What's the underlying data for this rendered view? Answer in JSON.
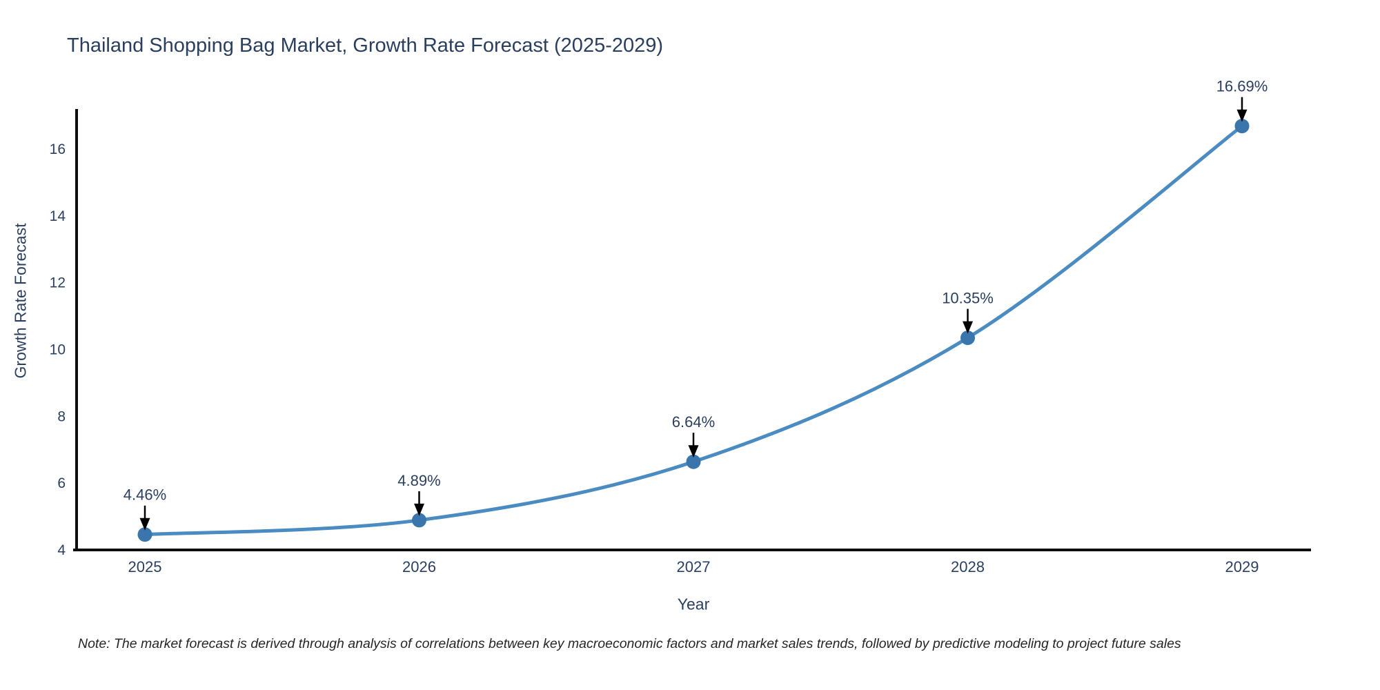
{
  "chart_data": {
    "type": "line",
    "title": "Thailand Shopping Bag Market, Growth Rate Forecast (2025-2029)",
    "x": [
      2025,
      2026,
      2027,
      2028,
      2029
    ],
    "values": [
      4.46,
      4.89,
      6.64,
      10.35,
      16.69
    ],
    "point_labels": [
      "4.46%",
      "4.89%",
      "6.64%",
      "10.35%",
      "16.69%"
    ],
    "xlabel": "Year",
    "ylabel": "Growth Rate Forecast",
    "ylim": [
      4,
      17.2
    ],
    "yticks": [
      4,
      6,
      8,
      10,
      12,
      14,
      16
    ],
    "line_shape": "spline",
    "markers": true,
    "grid": false,
    "legend_position": "none",
    "line_color": "#4a8bc2",
    "marker_color": "#3a76ab",
    "axis_color": "#0d0d0d",
    "text_color": "#2a3f5f",
    "annotation_arrow_color": "#000000"
  },
  "footnote": {
    "text": "Note: The market forecast is derived through analysis of correlations between key macroeconomic factors and market sales trends, followed by predictive modeling to project future sales"
  }
}
